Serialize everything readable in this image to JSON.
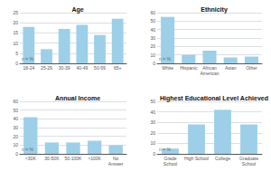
{
  "chart_data": [
    {
      "type": "bar",
      "title": "Age",
      "categories": [
        "18-24",
        "25-29",
        "30-39",
        "40-49",
        "50-59",
        "65+"
      ],
      "values": [
        18,
        7,
        17,
        19,
        14,
        22
      ],
      "color": "#9dcfe8",
      "ylim": [
        0,
        25
      ],
      "yticks": [
        0,
        5,
        10,
        15,
        20,
        25
      ],
      "grid": true,
      "annotation": "n = %"
    },
    {
      "type": "bar",
      "title": "Ethnicity",
      "categories": [
        "White",
        "Hispanic",
        "African\nAmerican",
        "Asian",
        "Other"
      ],
      "values": [
        55,
        10,
        15,
        7,
        8
      ],
      "color": "#9dcfe8",
      "ylim": [
        0,
        60
      ],
      "yticks": [
        0,
        10,
        20,
        30,
        40,
        50,
        60
      ],
      "grid": true,
      "annotation": "n = %"
    },
    {
      "type": "bar",
      "title": "Annual Income",
      "categories": [
        "<30K",
        "30-50K",
        "50-100K",
        ">100K",
        "No\nAnswer"
      ],
      "values": [
        42,
        13,
        13,
        15,
        10
      ],
      "color": "#9dcfe8",
      "ylim": [
        0,
        60
      ],
      "yticks": [
        0,
        10,
        20,
        30,
        40,
        50,
        60
      ],
      "grid": true,
      "annotation": "n = %"
    },
    {
      "type": "bar",
      "title": "Highest Educational Level Achieved",
      "categories": [
        "Grade\nSchool",
        "High School",
        "College",
        "Graduate\nSchool"
      ],
      "values": [
        5,
        28,
        42,
        28
      ],
      "color": "#9dcfe8",
      "ylim": [
        0,
        50
      ],
      "yticks": [
        0,
        10,
        20,
        30,
        40,
        50
      ],
      "grid": true,
      "annotation": "n = %"
    }
  ]
}
